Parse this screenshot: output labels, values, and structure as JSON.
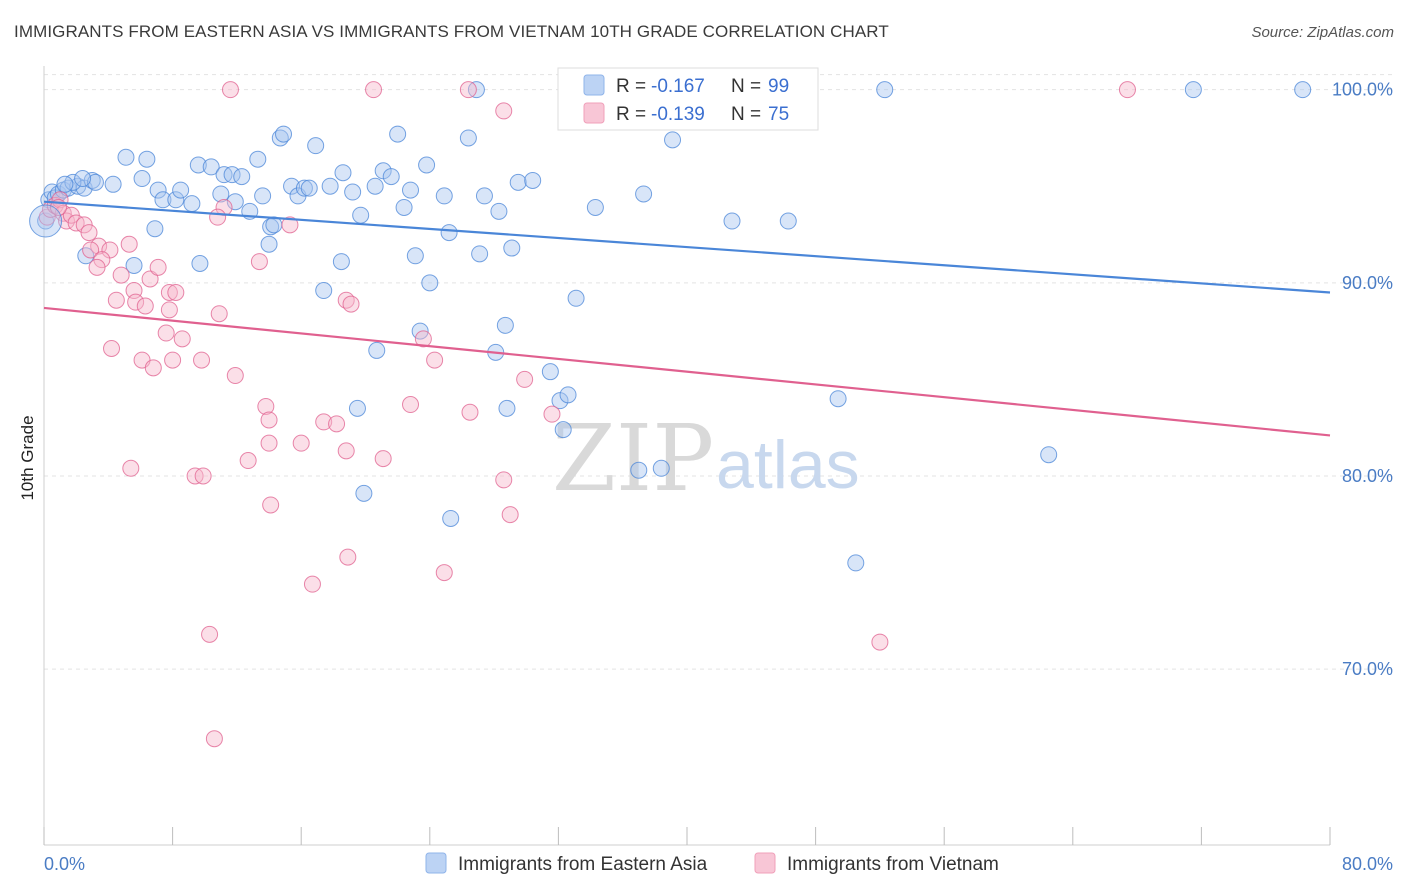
{
  "title": "IMMIGRANTS FROM EASTERN ASIA VS IMMIGRANTS FROM VIETNAM 10TH GRADE CORRELATION CHART",
  "source": "Source: ZipAtlas.com",
  "watermark": {
    "zip": "ZIP",
    "atlas": "atlas"
  },
  "legend": {
    "r_label": "R =",
    "n_label": "N =",
    "rows": [
      {
        "r": "-0.167",
        "n": "99",
        "color": "#8fb4ea",
        "fill": "#bcd3f4"
      },
      {
        "r": "-0.139",
        "n": "75",
        "color": "#f0a0ba",
        "fill": "#f8c6d6"
      }
    ]
  },
  "chart_data": {
    "type": "scatter",
    "title": "IMMIGRANTS FROM EASTERN ASIA VS IMMIGRANTS FROM VIETNAM 10TH GRADE CORRELATION CHART",
    "xlabel": "",
    "ylabel": "10th Grade",
    "xlim": [
      0,
      80
    ],
    "ylim": [
      61,
      100.5
    ],
    "x_tick_labels": [
      "0.0%",
      "80.0%"
    ],
    "y_ticks": [
      70,
      80,
      90,
      100
    ],
    "y_tick_labels": [
      "70.0%",
      "80.0%",
      "90.0%",
      "100.0%"
    ],
    "grid": true,
    "legend_position": "bottom-center",
    "series": [
      {
        "name": "Immigrants from Eastern Asia",
        "color": "#4a86d8",
        "fill": "#a9c6ef",
        "trend": {
          "x": [
            0,
            80
          ],
          "y": [
            94.2,
            89.5
          ]
        },
        "points": [
          [
            0.1,
            93.2
          ],
          [
            0.3,
            94.3
          ],
          [
            0.5,
            94.7
          ],
          [
            0.7,
            94.4
          ],
          [
            0.9,
            94.6
          ],
          [
            1.2,
            94.8
          ],
          [
            1.5,
            94.9
          ],
          [
            2.1,
            95.0
          ],
          [
            2.5,
            94.9
          ],
          [
            3.0,
            95.3
          ],
          [
            3.2,
            95.2
          ],
          [
            4.3,
            95.1
          ],
          [
            1.8,
            95.2
          ],
          [
            2.4,
            95.4
          ],
          [
            5.1,
            96.5
          ],
          [
            6.4,
            96.4
          ],
          [
            6.1,
            95.4
          ],
          [
            7.1,
            94.8
          ],
          [
            7.4,
            94.3
          ],
          [
            8.2,
            94.3
          ],
          [
            8.5,
            94.8
          ],
          [
            9.2,
            94.1
          ],
          [
            9.6,
            96.1
          ],
          [
            10.4,
            96.0
          ],
          [
            11.2,
            95.6
          ],
          [
            11.7,
            95.6
          ],
          [
            11.0,
            94.6
          ],
          [
            11.9,
            94.2
          ],
          [
            12.3,
            95.5
          ],
          [
            12.8,
            93.7
          ],
          [
            13.3,
            96.4
          ],
          [
            13.6,
            94.5
          ],
          [
            14.1,
            92.9
          ],
          [
            14.0,
            92.0
          ],
          [
            14.7,
            97.5
          ],
          [
            14.9,
            97.7
          ],
          [
            15.4,
            95.0
          ],
          [
            15.8,
            94.5
          ],
          [
            16.2,
            94.9
          ],
          [
            16.5,
            94.9
          ],
          [
            16.9,
            97.1
          ],
          [
            17.8,
            95.0
          ],
          [
            18.6,
            95.7
          ],
          [
            19.2,
            94.7
          ],
          [
            19.7,
            93.5
          ],
          [
            20.6,
            95.0
          ],
          [
            21.1,
            95.8
          ],
          [
            21.6,
            95.5
          ],
          [
            22.0,
            97.7
          ],
          [
            22.4,
            93.9
          ],
          [
            22.8,
            94.8
          ],
          [
            23.8,
            96.1
          ],
          [
            24.9,
            94.5
          ],
          [
            25.2,
            92.6
          ],
          [
            26.4,
            97.5
          ],
          [
            27.1,
            91.5
          ],
          [
            27.4,
            94.5
          ],
          [
            28.3,
            93.7
          ],
          [
            29.1,
            91.8
          ],
          [
            29.5,
            95.2
          ],
          [
            30.4,
            95.3
          ],
          [
            2.6,
            91.4
          ],
          [
            5.6,
            90.9
          ],
          [
            9.7,
            91.0
          ],
          [
            18.5,
            91.1
          ],
          [
            23.1,
            91.4
          ],
          [
            24.0,
            90.0
          ],
          [
            17.4,
            89.6
          ],
          [
            33.1,
            89.2
          ],
          [
            23.4,
            87.5
          ],
          [
            28.7,
            87.8
          ],
          [
            20.7,
            86.5
          ],
          [
            28.1,
            86.4
          ],
          [
            31.5,
            85.4
          ],
          [
            32.1,
            83.9
          ],
          [
            32.6,
            84.2
          ],
          [
            19.5,
            83.5
          ],
          [
            28.8,
            83.5
          ],
          [
            32.3,
            82.4
          ],
          [
            38.4,
            80.4
          ],
          [
            37.0,
            80.3
          ],
          [
            49.4,
            84.0
          ],
          [
            62.5,
            81.1
          ],
          [
            19.9,
            79.1
          ],
          [
            25.3,
            77.8
          ],
          [
            50.5,
            75.5
          ],
          [
            37.3,
            100.0
          ],
          [
            26.9,
            100.0
          ],
          [
            52.3,
            100.0
          ],
          [
            71.5,
            100.0
          ],
          [
            78.3,
            100.0
          ],
          [
            39.1,
            97.4
          ],
          [
            34.3,
            93.9
          ],
          [
            37.3,
            94.6
          ],
          [
            42.8,
            93.2
          ],
          [
            46.3,
            93.2
          ],
          [
            6.9,
            92.8
          ],
          [
            14.3,
            93.0
          ],
          [
            1.3,
            95.1
          ]
        ]
      },
      {
        "name": "Immigrants from Vietnam",
        "color": "#e0608f",
        "fill": "#f6b8cc",
        "trend": {
          "x": [
            0,
            80
          ],
          "y": [
            88.7,
            82.1
          ]
        },
        "points": [
          [
            0.2,
            93.4
          ],
          [
            0.4,
            93.8
          ],
          [
            0.7,
            94.0
          ],
          [
            1.0,
            94.3
          ],
          [
            1.2,
            93.6
          ],
          [
            1.4,
            93.2
          ],
          [
            1.7,
            93.5
          ],
          [
            2.0,
            93.1
          ],
          [
            2.5,
            93.0
          ],
          [
            2.8,
            92.6
          ],
          [
            3.4,
            91.9
          ],
          [
            4.1,
            91.7
          ],
          [
            5.3,
            92.0
          ],
          [
            2.9,
            91.7
          ],
          [
            3.6,
            91.2
          ],
          [
            3.3,
            90.8
          ],
          [
            4.8,
            90.4
          ],
          [
            5.6,
            89.6
          ],
          [
            6.6,
            90.2
          ],
          [
            7.1,
            90.8
          ],
          [
            7.8,
            89.5
          ],
          [
            8.2,
            89.5
          ],
          [
            4.5,
            89.1
          ],
          [
            5.7,
            89.0
          ],
          [
            6.3,
            88.8
          ],
          [
            7.8,
            88.6
          ],
          [
            10.9,
            88.4
          ],
          [
            7.6,
            87.4
          ],
          [
            8.6,
            87.1
          ],
          [
            4.2,
            86.6
          ],
          [
            6.1,
            86.0
          ],
          [
            6.8,
            85.6
          ],
          [
            9.8,
            86.0
          ],
          [
            8.0,
            86.0
          ],
          [
            11.9,
            85.2
          ],
          [
            11.2,
            93.9
          ],
          [
            10.8,
            93.4
          ],
          [
            13.4,
            91.1
          ],
          [
            13.8,
            83.6
          ],
          [
            14.0,
            82.9
          ],
          [
            14.0,
            81.7
          ],
          [
            12.7,
            80.8
          ],
          [
            14.1,
            78.5
          ],
          [
            16.0,
            81.7
          ],
          [
            17.4,
            82.8
          ],
          [
            18.2,
            82.7
          ],
          [
            18.8,
            81.3
          ],
          [
            18.8,
            89.1
          ],
          [
            19.1,
            88.9
          ],
          [
            21.1,
            80.9
          ],
          [
            22.8,
            83.7
          ],
          [
            23.6,
            87.1
          ],
          [
            24.3,
            86.0
          ],
          [
            26.5,
            83.3
          ],
          [
            28.6,
            79.8
          ],
          [
            29.0,
            78.0
          ],
          [
            29.9,
            85.0
          ],
          [
            31.6,
            83.2
          ],
          [
            5.4,
            80.4
          ],
          [
            9.4,
            80.0
          ],
          [
            9.9,
            80.0
          ],
          [
            16.7,
            74.4
          ],
          [
            18.9,
            75.8
          ],
          [
            24.9,
            75.0
          ],
          [
            10.3,
            71.8
          ],
          [
            10.6,
            66.4
          ],
          [
            52.0,
            71.4
          ],
          [
            11.6,
            100.0
          ],
          [
            20.5,
            100.0
          ],
          [
            26.4,
            100.0
          ],
          [
            28.6,
            98.9
          ],
          [
            43.5,
            100.0
          ],
          [
            67.4,
            100.0
          ],
          [
            15.3,
            93.0
          ],
          [
            0.9,
            93.9
          ]
        ]
      }
    ]
  }
}
